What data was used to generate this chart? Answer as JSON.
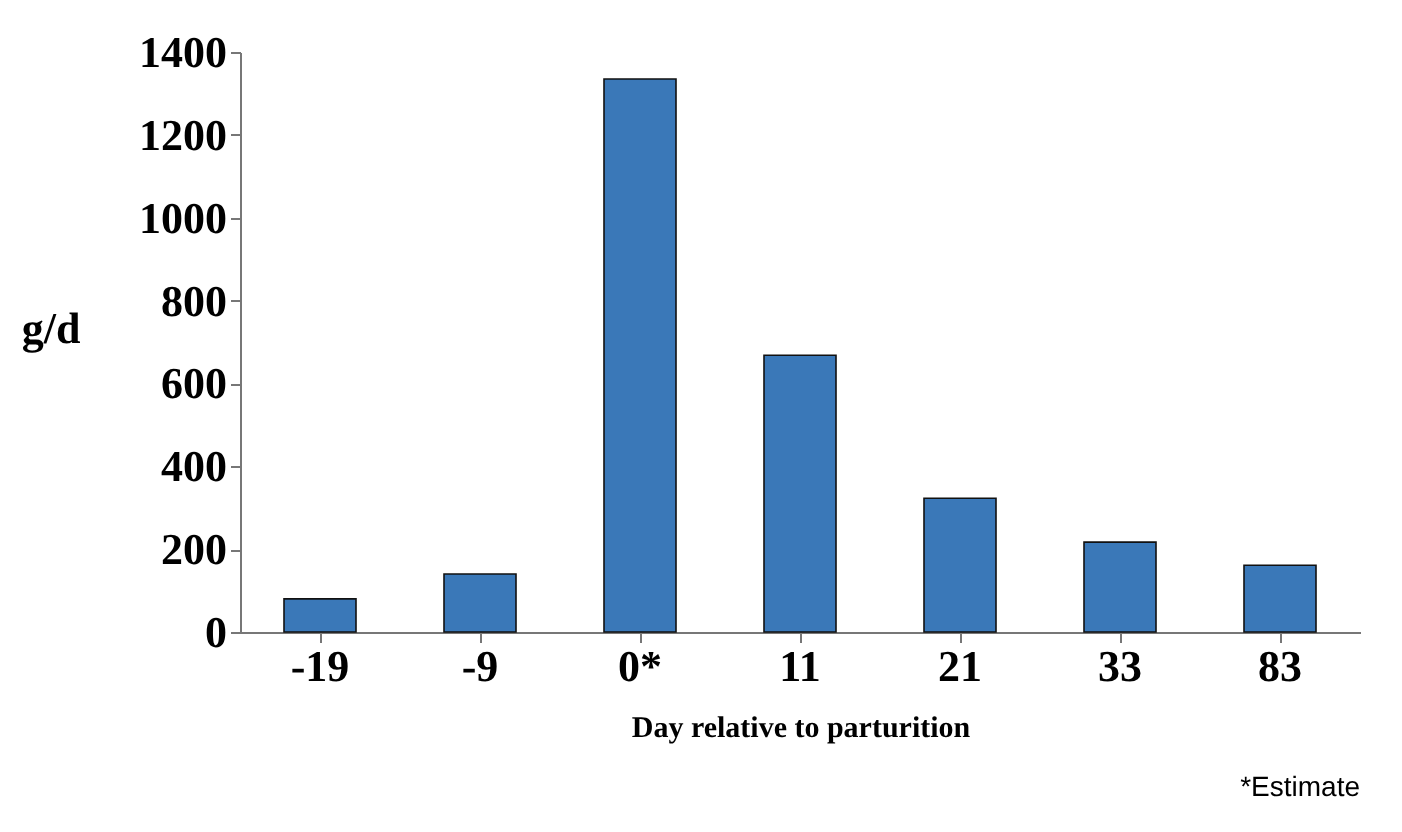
{
  "chart_data": {
    "type": "bar",
    "xlabel": "Day relative to parturition",
    "ylabel": "g/d",
    "categories": [
      "-19",
      "-9",
      "0*",
      "11",
      "21",
      "33",
      "83"
    ],
    "values": [
      80,
      140,
      1335,
      668,
      323,
      217,
      161
    ],
    "color": "#3a78b8",
    "ylim": [
      0,
      1400
    ],
    "yticks": [
      0,
      200,
      400,
      600,
      800,
      1000,
      1200,
      1400
    ],
    "grid": false,
    "annotations": [
      "*Estimate"
    ]
  }
}
